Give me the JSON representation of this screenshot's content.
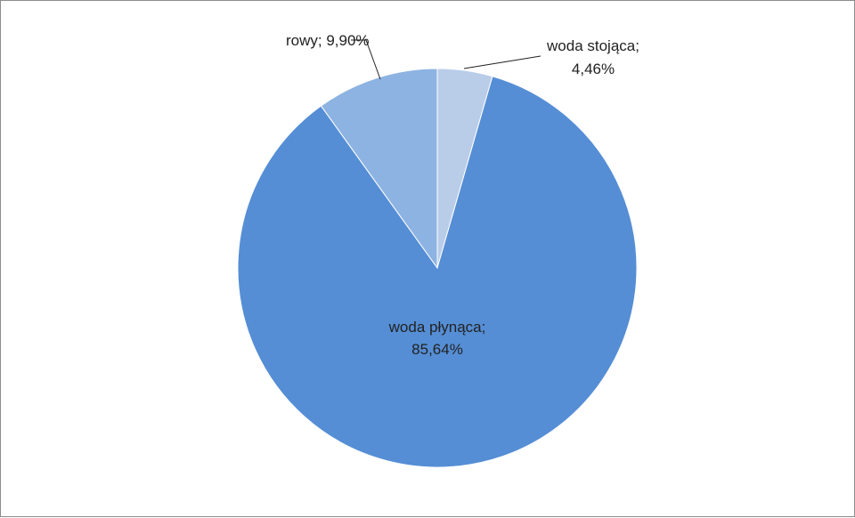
{
  "chart_data": {
    "type": "pie",
    "title": "",
    "start_angle_deg": 0,
    "direction": "clockwise",
    "slices": [
      {
        "name": "woda stojąca",
        "value": 4.46,
        "label_line1": "woda stojąca;",
        "label_line2": "4,46%",
        "color": "#b9cde9"
      },
      {
        "name": "woda płynąca",
        "value": 85.64,
        "label_line1": "woda płynąca;",
        "label_line2": "85,64%",
        "color": "#558ed5"
      },
      {
        "name": "rowy",
        "value": 9.9,
        "label_line1": "rowy; 9,90%",
        "label_line2": "",
        "color": "#8db3e2"
      }
    ],
    "legend": "none",
    "data_labels": "category; percentage"
  }
}
